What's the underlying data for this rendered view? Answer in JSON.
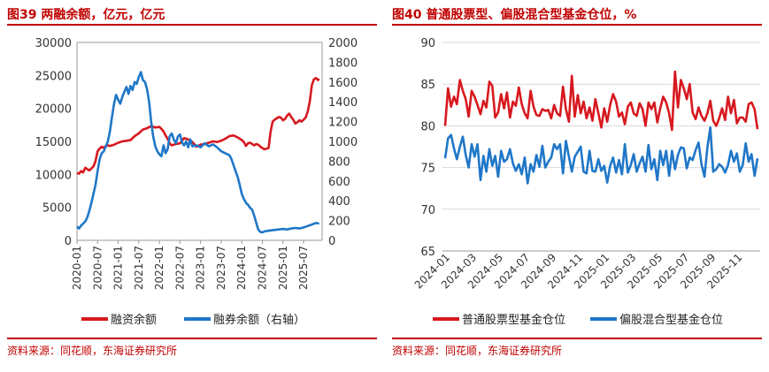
{
  "left": {
    "title": "图39 两融余额，亿元，亿元",
    "source": "资料来源：同花顺，东海证券研究所"
  },
  "right": {
    "title": "图40 普通股票型、偏股混合型基金仓位，%",
    "source": "资料来源：同花顺，东海证券研究所"
  },
  "colors": {
    "red": "#d7191f",
    "blue": "#1f77c8",
    "accent": "#c00000"
  },
  "chart_data": [
    {
      "type": "line",
      "x_ticks": [
        "2020-01",
        "2020-07",
        "2021-01",
        "2021-07",
        "2022-01",
        "2022-07",
        "2023-01",
        "2023-07",
        "2024-01",
        "2024-07",
        "2025-01",
        "2025-07"
      ],
      "y_left_ticks": [
        "0",
        "5000",
        "10000",
        "15000",
        "20000",
        "25000",
        "30000"
      ],
      "y_right_ticks": [
        "0",
        "200",
        "400",
        "600",
        "800",
        "1000",
        "1200",
        "1400",
        "1600",
        "1800",
        "2000"
      ],
      "ylim_left": [
        0,
        30000
      ],
      "ylim_right": [
        0,
        2000
      ],
      "legend": "bottom",
      "grid": false,
      "series": [
        {
          "name": "融资余额",
          "axis": "left",
          "color": "#d7191f",
          "points": [
            [
              2020.0,
              10200
            ],
            [
              2020.05,
              10100
            ],
            [
              2020.1,
              10500
            ],
            [
              2020.15,
              10300
            ],
            [
              2020.2,
              11000
            ],
            [
              2020.25,
              10800
            ],
            [
              2020.3,
              10600
            ],
            [
              2020.35,
              10900
            ],
            [
              2020.4,
              11200
            ],
            [
              2020.45,
              12000
            ],
            [
              2020.5,
              13500
            ],
            [
              2020.55,
              13900
            ],
            [
              2020.6,
              14200
            ],
            [
              2020.65,
              14000
            ],
            [
              2020.7,
              14300
            ],
            [
              2020.75,
              14400
            ],
            [
              2020.8,
              14300
            ],
            [
              2020.9,
              14500
            ],
            [
              2021.0,
              14800
            ],
            [
              2021.1,
              15000
            ],
            [
              2021.2,
              15100
            ],
            [
              2021.3,
              15200
            ],
            [
              2021.4,
              15800
            ],
            [
              2021.5,
              16200
            ],
            [
              2021.6,
              16800
            ],
            [
              2021.7,
              17000
            ],
            [
              2021.8,
              17300
            ],
            [
              2021.9,
              17100
            ],
            [
              2022.0,
              17200
            ],
            [
              2022.05,
              16900
            ],
            [
              2022.1,
              16500
            ],
            [
              2022.15,
              15900
            ],
            [
              2022.2,
              15400
            ],
            [
              2022.25,
              14700
            ],
            [
              2022.3,
              14400
            ],
            [
              2022.35,
              14500
            ],
            [
              2022.4,
              14600
            ],
            [
              2022.5,
              14700
            ],
            [
              2022.6,
              15500
            ],
            [
              2022.7,
              15300
            ],
            [
              2022.8,
              14900
            ],
            [
              2022.9,
              14200
            ],
            [
              2023.0,
              14500
            ],
            [
              2023.1,
              14600
            ],
            [
              2023.2,
              14800
            ],
            [
              2023.3,
              15000
            ],
            [
              2023.4,
              14900
            ],
            [
              2023.5,
              15100
            ],
            [
              2023.6,
              15400
            ],
            [
              2023.7,
              15800
            ],
            [
              2023.8,
              15900
            ],
            [
              2023.9,
              15600
            ],
            [
              2024.0,
              15200
            ],
            [
              2024.05,
              14900
            ],
            [
              2024.1,
              14300
            ],
            [
              2024.15,
              14700
            ],
            [
              2024.2,
              14800
            ],
            [
              2024.25,
              14600
            ],
            [
              2024.3,
              14400
            ],
            [
              2024.35,
              14600
            ],
            [
              2024.4,
              14500
            ],
            [
              2024.45,
              14200
            ],
            [
              2024.5,
              14000
            ],
            [
              2024.55,
              13800
            ],
            [
              2024.6,
              13900
            ],
            [
              2024.65,
              14000
            ],
            [
              2024.7,
              16500
            ],
            [
              2024.75,
              18000
            ],
            [
              2024.8,
              18300
            ],
            [
              2024.85,
              18500
            ],
            [
              2024.9,
              18700
            ],
            [
              2024.95,
              18600
            ],
            [
              2025.0,
              18200
            ],
            [
              2025.05,
              18400
            ],
            [
              2025.1,
              18900
            ],
            [
              2025.15,
              19200
            ],
            [
              2025.2,
              18700
            ],
            [
              2025.25,
              18300
            ],
            [
              2025.3,
              17700
            ],
            [
              2025.35,
              17900
            ],
            [
              2025.4,
              18200
            ],
            [
              2025.45,
              18000
            ],
            [
              2025.5,
              18300
            ],
            [
              2025.55,
              18600
            ],
            [
              2025.6,
              19500
            ],
            [
              2025.65,
              21000
            ],
            [
              2025.7,
              23500
            ],
            [
              2025.75,
              24400
            ],
            [
              2025.8,
              24600
            ],
            [
              2025.85,
              24300
            ],
            [
              2025.88,
              24500
            ]
          ]
        },
        {
          "name": "融券余额（右轴）",
          "axis": "right",
          "color": "#1f77c8",
          "points": [
            [
              2020.0,
              140
            ],
            [
              2020.05,
              120
            ],
            [
              2020.1,
              150
            ],
            [
              2020.15,
              170
            ],
            [
              2020.2,
              190
            ],
            [
              2020.25,
              230
            ],
            [
              2020.3,
              300
            ],
            [
              2020.35,
              380
            ],
            [
              2020.4,
              470
            ],
            [
              2020.45,
              560
            ],
            [
              2020.5,
              700
            ],
            [
              2020.55,
              820
            ],
            [
              2020.6,
              880
            ],
            [
              2020.65,
              900
            ],
            [
              2020.7,
              950
            ],
            [
              2020.75,
              1000
            ],
            [
              2020.8,
              1100
            ],
            [
              2020.85,
              1250
            ],
            [
              2020.9,
              1380
            ],
            [
              2020.95,
              1470
            ],
            [
              2021.0,
              1420
            ],
            [
              2021.05,
              1380
            ],
            [
              2021.1,
              1450
            ],
            [
              2021.15,
              1500
            ],
            [
              2021.2,
              1550
            ],
            [
              2021.25,
              1480
            ],
            [
              2021.3,
              1560
            ],
            [
              2021.35,
              1520
            ],
            [
              2021.4,
              1600
            ],
            [
              2021.45,
              1580
            ],
            [
              2021.5,
              1650
            ],
            [
              2021.55,
              1700
            ],
            [
              2021.6,
              1620
            ],
            [
              2021.65,
              1600
            ],
            [
              2021.7,
              1530
            ],
            [
              2021.75,
              1400
            ],
            [
              2021.8,
              1200
            ],
            [
              2021.85,
              1050
            ],
            [
              2021.9,
              950
            ],
            [
              2021.95,
              900
            ],
            [
              2022.0,
              870
            ],
            [
              2022.05,
              850
            ],
            [
              2022.1,
              960
            ],
            [
              2022.15,
              880
            ],
            [
              2022.2,
              920
            ],
            [
              2022.25,
              1050
            ],
            [
              2022.3,
              1080
            ],
            [
              2022.35,
              1020
            ],
            [
              2022.4,
              980
            ],
            [
              2022.45,
              1050
            ],
            [
              2022.5,
              1070
            ],
            [
              2022.55,
              990
            ],
            [
              2022.6,
              960
            ],
            [
              2022.65,
              1000
            ],
            [
              2022.7,
              940
            ],
            [
              2022.75,
              1020
            ],
            [
              2022.8,
              950
            ],
            [
              2022.9,
              960
            ],
            [
              2023.0,
              940
            ],
            [
              2023.1,
              980
            ],
            [
              2023.2,
              950
            ],
            [
              2023.3,
              970
            ],
            [
              2023.4,
              940
            ],
            [
              2023.5,
              900
            ],
            [
              2023.6,
              880
            ],
            [
              2023.7,
              860
            ],
            [
              2023.75,
              820
            ],
            [
              2023.8,
              760
            ],
            [
              2023.85,
              700
            ],
            [
              2023.9,
              640
            ],
            [
              2023.95,
              560
            ],
            [
              2024.0,
              470
            ],
            [
              2024.05,
              420
            ],
            [
              2024.1,
              380
            ],
            [
              2024.15,
              360
            ],
            [
              2024.2,
              330
            ],
            [
              2024.25,
              310
            ],
            [
              2024.3,
              250
            ],
            [
              2024.35,
              180
            ],
            [
              2024.4,
              110
            ],
            [
              2024.45,
              85
            ],
            [
              2024.5,
              80
            ],
            [
              2024.55,
              90
            ],
            [
              2024.6,
              95
            ],
            [
              2024.7,
              100
            ],
            [
              2024.8,
              105
            ],
            [
              2024.9,
              110
            ],
            [
              2025.0,
              115
            ],
            [
              2025.1,
              110
            ],
            [
              2025.2,
              120
            ],
            [
              2025.3,
              125
            ],
            [
              2025.4,
              120
            ],
            [
              2025.5,
              130
            ],
            [
              2025.6,
              145
            ],
            [
              2025.7,
              160
            ],
            [
              2025.8,
              175
            ],
            [
              2025.88,
              170
            ]
          ]
        }
      ]
    },
    {
      "type": "line",
      "x_ticks": [
        "2024-01",
        "2024-03",
        "2024-05",
        "2024-07",
        "2024-09",
        "2024-11",
        "2025-01",
        "2025-03",
        "2025-05",
        "2025-07",
        "2025-09",
        "2025-11"
      ],
      "y_ticks": [
        "65",
        "70",
        "75",
        "80",
        "85",
        "90"
      ],
      "ylim": [
        65,
        90
      ],
      "legend": "bottom",
      "grid": true,
      "series": [
        {
          "name": "普通股票型基金仓位",
          "color": "#d7191f",
          "values": [
            80.0,
            84.5,
            82.3,
            83.5,
            82.6,
            85.5,
            84.2,
            83.2,
            81.1,
            84.2,
            83.5,
            82.5,
            81.4,
            83.0,
            82.2,
            85.3,
            84.8,
            81.0,
            81.6,
            83.8,
            82.1,
            84.0,
            81.0,
            82.9,
            82.4,
            84.6,
            82.6,
            81.5,
            80.9,
            84.2,
            82.3,
            81.3,
            81.2,
            82.0,
            81.8,
            81.9,
            80.9,
            82.5,
            81.5,
            81.2,
            84.7,
            82.0,
            80.5,
            86.0,
            81.1,
            83.7,
            81.5,
            82.9,
            80.9,
            82.2,
            80.6,
            83.2,
            81.5,
            79.8,
            82.1,
            80.5,
            82.5,
            83.8,
            82.9,
            81.1,
            81.6,
            80.2,
            82.3,
            82.8,
            81.5,
            81.2,
            82.7,
            82.0,
            80.0,
            82.8,
            82.0,
            82.8,
            80.4,
            82.1,
            83.5,
            82.8,
            81.5,
            79.5,
            86.5,
            82.2,
            85.5,
            84.5,
            83.2,
            85.0,
            81.6,
            80.8,
            82.2,
            81.2,
            80.6,
            81.5,
            83.0,
            80.6,
            80.0,
            80.9,
            82.1,
            80.7,
            83.5,
            81.5,
            83.1,
            80.3,
            81.0,
            81.0,
            80.5,
            82.6,
            82.8,
            82.0,
            79.6
          ]
        },
        {
          "name": "偏股混合型基金仓位",
          "color": "#1f77c8",
          "values": [
            76.1,
            78.5,
            78.9,
            77.3,
            76.0,
            77.5,
            78.7,
            76.5,
            75.0,
            77.8,
            76.3,
            77.8,
            73.5,
            76.4,
            74.5,
            77.2,
            75.2,
            76.4,
            73.9,
            77.0,
            75.7,
            76.0,
            77.2,
            75.5,
            74.6,
            75.4,
            74.2,
            76.2,
            73.1,
            75.4,
            74.5,
            76.5,
            75.1,
            77.6,
            75.0,
            75.7,
            76.2,
            77.8,
            77.2,
            77.8,
            74.3,
            78.2,
            76.3,
            74.5,
            76.3,
            76.9,
            77.5,
            74.5,
            74.3,
            77.0,
            74.6,
            74.5,
            76.0,
            74.6,
            75.2,
            73.2,
            75.2,
            76.2,
            74.4,
            75.9,
            74.2,
            77.8,
            74.4,
            75.3,
            76.6,
            74.5,
            75.5,
            76.3,
            74.5,
            77.7,
            74.8,
            76.0,
            73.5,
            77.0,
            75.3,
            77.0,
            74.0,
            77.0,
            74.8,
            76.5,
            77.4,
            77.3,
            74.9,
            76.2,
            75.9,
            77.1,
            78.0,
            75.4,
            73.9,
            77.4,
            79.8,
            74.5,
            74.8,
            75.4,
            75.1,
            74.4,
            75.3,
            77.0,
            75.7,
            76.7,
            74.5,
            75.3,
            77.9,
            75.7,
            76.6,
            74.0,
            76.1
          ]
        }
      ]
    }
  ]
}
